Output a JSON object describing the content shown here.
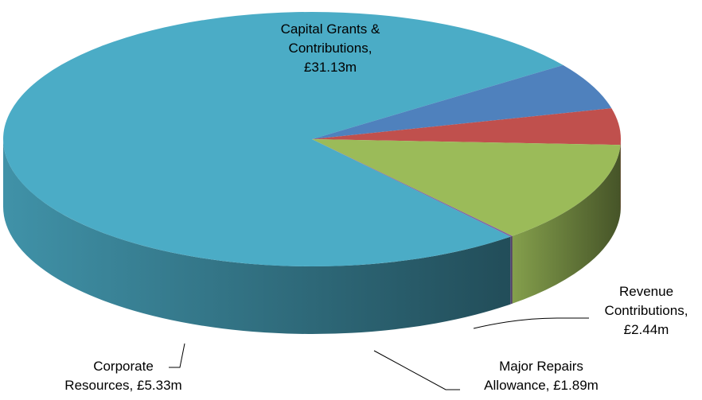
{
  "chart_data": {
    "type": "pie3d",
    "labels": [
      [
        "Capital Grants &",
        "Contributions,",
        "£31.13m"
      ],
      [
        "Revenue",
        "Contributions,",
        "£2.44m"
      ],
      [
        "Major Repairs",
        "Allowance, £1.89m"
      ],
      [
        "Corporate",
        "Resources, £5.33m"
      ],
      null
    ],
    "values": [
      31.13,
      2.44,
      1.89,
      5.33,
      0.05
    ],
    "colors": [
      "#4bacc6",
      "#4f81bd",
      "#c0504d",
      "#9bbb59",
      "#8064a2"
    ]
  }
}
